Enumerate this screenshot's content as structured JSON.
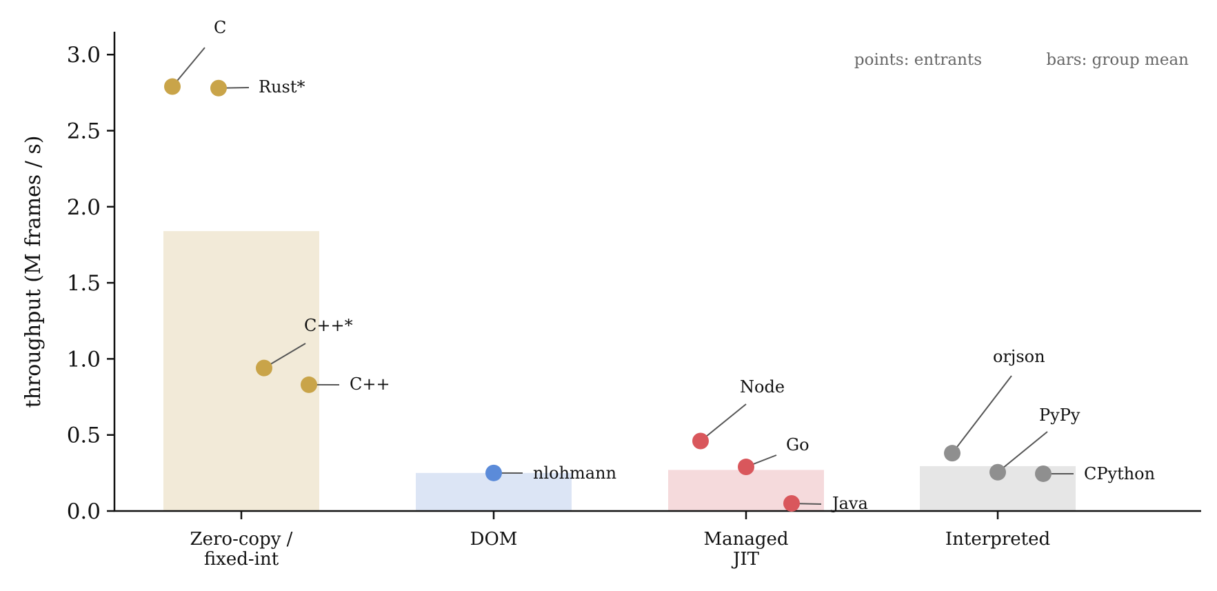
{
  "chart_data": {
    "type": "bar",
    "ylabel": "throughput (M frames / s)",
    "xlabel": "",
    "ylim": [
      0,
      3.15
    ],
    "yticks": [
      "0.0",
      "0.5",
      "1.0",
      "1.5",
      "2.0",
      "2.5",
      "3.0"
    ],
    "grid": false,
    "legend": {
      "placement": "top-right",
      "points_note": "points: entrants",
      "bars_note": "bars: group mean"
    },
    "categories": [
      {
        "lines": [
          "Zero-copy /",
          "fixed-int"
        ],
        "bar_color": "#f2ead8",
        "point_color": "#c9a449"
      },
      {
        "lines": [
          "DOM"
        ],
        "bar_color": "#dce5f5",
        "point_color": "#5b8bd9"
      },
      {
        "lines": [
          "Managed",
          "JIT"
        ],
        "bar_color": "#f5dadc",
        "point_color": "#d9575c"
      },
      {
        "lines": [
          "Interpreted"
        ],
        "bar_color": "#e6e6e6",
        "point_color": "#8f8f8f"
      }
    ],
    "values": [
      1.84,
      0.25,
      0.27,
      0.295
    ],
    "points": [
      {
        "label": "C",
        "category": 0,
        "y": 2.79
      },
      {
        "label": "Rust*",
        "category": 0,
        "y": 2.78
      },
      {
        "label": "C++*",
        "category": 0,
        "y": 0.94
      },
      {
        "label": "C++",
        "category": 0,
        "y": 0.83
      },
      {
        "label": "nlohmann",
        "category": 1,
        "y": 0.25
      },
      {
        "label": "Node",
        "category": 2,
        "y": 0.46
      },
      {
        "label": "Go",
        "category": 2,
        "y": 0.29
      },
      {
        "label": "Java",
        "category": 2,
        "y": 0.05
      },
      {
        "label": "orjson",
        "category": 3,
        "y": 0.38
      },
      {
        "label": "PyPy",
        "category": 3,
        "y": 0.255
      },
      {
        "label": "CPython",
        "category": 3,
        "y": 0.245
      }
    ]
  }
}
